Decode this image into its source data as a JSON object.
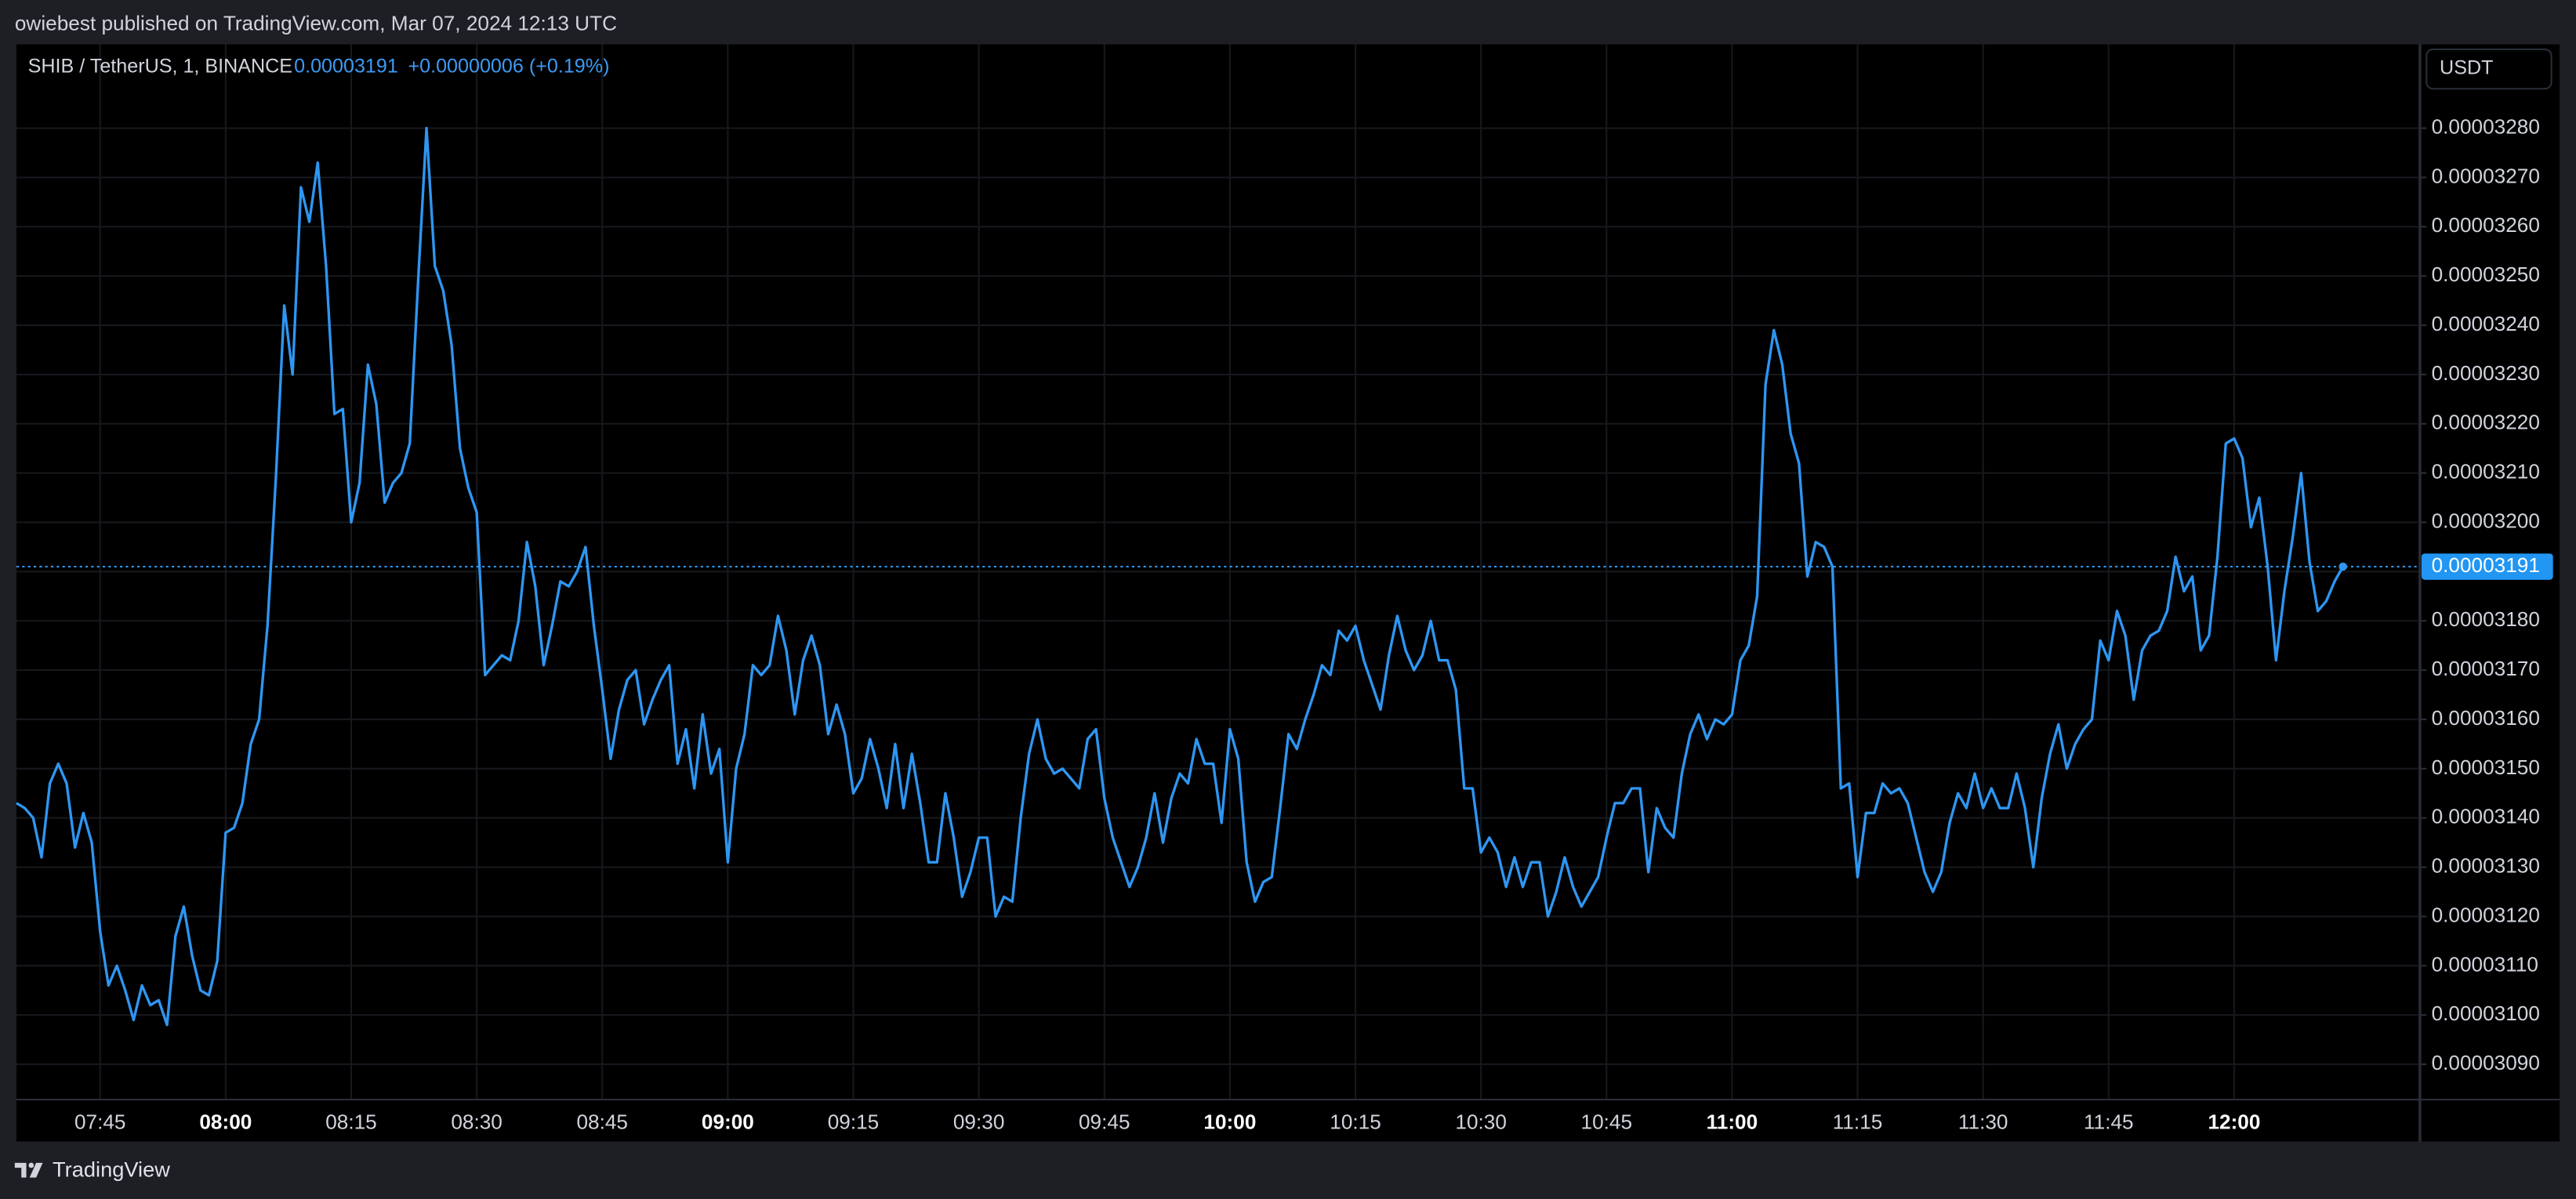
{
  "header": {
    "publisher": "owiebest published on TradingView.com, Mar 07, 2024 12:13 UTC"
  },
  "chart_data": {
    "type": "line",
    "symbol": "SHIB / TetherUS, 1, BINANCE",
    "price": "0.00003191",
    "change": "+0.00000006 (+0.19%)",
    "currency": "USDT",
    "last_price_label": "0.00003191",
    "x": [
      "07:35",
      "07:36",
      "07:37",
      "07:38",
      "07:39",
      "07:40",
      "07:41",
      "07:42",
      "07:43",
      "07:44",
      "07:45",
      "07:46",
      "07:47",
      "07:48",
      "07:49",
      "07:50",
      "07:51",
      "07:52",
      "07:53",
      "07:54",
      "07:55",
      "07:56",
      "07:57",
      "07:58",
      "07:59",
      "08:00",
      "08:01",
      "08:02",
      "08:03",
      "08:04",
      "08:05",
      "08:06",
      "08:07",
      "08:08",
      "08:09",
      "08:10",
      "08:11",
      "08:12",
      "08:13",
      "08:14",
      "08:15",
      "08:16",
      "08:17",
      "08:18",
      "08:19",
      "08:20",
      "08:21",
      "08:22",
      "08:23",
      "08:24",
      "08:25",
      "08:26",
      "08:27",
      "08:28",
      "08:29",
      "08:30",
      "08:31",
      "08:32",
      "08:33",
      "08:34",
      "08:35",
      "08:36",
      "08:37",
      "08:38",
      "08:39",
      "08:40",
      "08:41",
      "08:42",
      "08:43",
      "08:44",
      "08:45",
      "08:46",
      "08:47",
      "08:48",
      "08:49",
      "08:50",
      "08:51",
      "08:52",
      "08:53",
      "08:54",
      "08:55",
      "08:56",
      "08:57",
      "08:58",
      "08:59",
      "09:00",
      "09:01",
      "09:02",
      "09:03",
      "09:04",
      "09:05",
      "09:06",
      "09:07",
      "09:08",
      "09:09",
      "09:10",
      "09:11",
      "09:12",
      "09:13",
      "09:14",
      "09:15",
      "09:16",
      "09:17",
      "09:18",
      "09:19",
      "09:20",
      "09:21",
      "09:22",
      "09:23",
      "09:24",
      "09:25",
      "09:26",
      "09:27",
      "09:28",
      "09:29",
      "09:30",
      "09:31",
      "09:32",
      "09:33",
      "09:34",
      "09:35",
      "09:36",
      "09:37",
      "09:38",
      "09:39",
      "09:40",
      "09:41",
      "09:42",
      "09:43",
      "09:44",
      "09:45",
      "09:46",
      "09:47",
      "09:48",
      "09:49",
      "09:50",
      "09:51",
      "09:52",
      "09:53",
      "09:54",
      "09:55",
      "09:56",
      "09:57",
      "09:58",
      "09:59",
      "10:00",
      "10:01",
      "10:02",
      "10:03",
      "10:04",
      "10:05",
      "10:06",
      "10:07",
      "10:08",
      "10:09",
      "10:10",
      "10:11",
      "10:12",
      "10:13",
      "10:14",
      "10:15",
      "10:16",
      "10:17",
      "10:18",
      "10:19",
      "10:20",
      "10:21",
      "10:22",
      "10:23",
      "10:24",
      "10:25",
      "10:26",
      "10:27",
      "10:28",
      "10:29",
      "10:30",
      "10:31",
      "10:32",
      "10:33",
      "10:34",
      "10:35",
      "10:36",
      "10:37",
      "10:38",
      "10:39",
      "10:40",
      "10:41",
      "10:42",
      "10:43",
      "10:44",
      "10:45",
      "10:46",
      "10:47",
      "10:48",
      "10:49",
      "10:50",
      "10:51",
      "10:52",
      "10:53",
      "10:54",
      "10:55",
      "10:56",
      "10:57",
      "10:58",
      "10:59",
      "11:00",
      "11:01",
      "11:02",
      "11:03",
      "11:04",
      "11:05",
      "11:06",
      "11:07",
      "11:08",
      "11:09",
      "11:10",
      "11:11",
      "11:12",
      "11:13",
      "11:14",
      "11:15",
      "11:16",
      "11:17",
      "11:18",
      "11:19",
      "11:20",
      "11:21",
      "11:22",
      "11:23",
      "11:24",
      "11:25",
      "11:26",
      "11:27",
      "11:28",
      "11:29",
      "11:30",
      "11:31",
      "11:32",
      "11:33",
      "11:34",
      "11:35",
      "11:36",
      "11:37",
      "11:38",
      "11:39",
      "11:40",
      "11:41",
      "11:42",
      "11:43",
      "11:44",
      "11:45",
      "11:46",
      "11:47",
      "11:48",
      "11:49",
      "11:50",
      "11:51",
      "11:52",
      "11:53",
      "11:54",
      "11:55",
      "11:56",
      "11:57",
      "11:58",
      "11:59",
      "12:00",
      "12:01",
      "12:02",
      "12:03",
      "12:04",
      "12:05",
      "12:06",
      "12:07",
      "12:08",
      "12:09",
      "12:10",
      "12:11",
      "12:12",
      "12:13"
    ],
    "series": [
      {
        "color": "#2e96f2",
        "values": [
          3.143e-05,
          3.142e-05,
          3.14e-05,
          3.132e-05,
          3.147e-05,
          3.151e-05,
          3.147e-05,
          3.134e-05,
          3.141e-05,
          3.135e-05,
          3.117e-05,
          3.106e-05,
          3.11e-05,
          3.105e-05,
          3.099e-05,
          3.106e-05,
          3.102e-05,
          3.103e-05,
          3.098e-05,
          3.116e-05,
          3.122e-05,
          3.112e-05,
          3.105e-05,
          3.104e-05,
          3.111e-05,
          3.137e-05,
          3.138e-05,
          3.143e-05,
          3.155e-05,
          3.16e-05,
          3.179e-05,
          3.209e-05,
          3.244e-05,
          3.23e-05,
          3.268e-05,
          3.261e-05,
          3.273e-05,
          3.252e-05,
          3.222e-05,
          3.223e-05,
          3.2e-05,
          3.208e-05,
          3.232e-05,
          3.224e-05,
          3.204e-05,
          3.208e-05,
          3.21e-05,
          3.216e-05,
          3.249e-05,
          3.28e-05,
          3.252e-05,
          3.247e-05,
          3.236e-05,
          3.215e-05,
          3.207e-05,
          3.202e-05,
          3.169e-05,
          3.171e-05,
          3.173e-05,
          3.172e-05,
          3.18e-05,
          3.196e-05,
          3.187e-05,
          3.171e-05,
          3.179e-05,
          3.188e-05,
          3.187e-05,
          3.19e-05,
          3.195e-05,
          3.179e-05,
          3.166e-05,
          3.152e-05,
          3.162e-05,
          3.168e-05,
          3.17e-05,
          3.159e-05,
          3.164e-05,
          3.168e-05,
          3.171e-05,
          3.151e-05,
          3.158e-05,
          3.146e-05,
          3.161e-05,
          3.149e-05,
          3.154e-05,
          3.131e-05,
          3.15e-05,
          3.157e-05,
          3.171e-05,
          3.169e-05,
          3.171e-05,
          3.181e-05,
          3.174e-05,
          3.161e-05,
          3.172e-05,
          3.177e-05,
          3.171e-05,
          3.157e-05,
          3.163e-05,
          3.157e-05,
          3.145e-05,
          3.148e-05,
          3.156e-05,
          3.15e-05,
          3.142e-05,
          3.155e-05,
          3.142e-05,
          3.153e-05,
          3.143e-05,
          3.131e-05,
          3.131e-05,
          3.145e-05,
          3.136e-05,
          3.124e-05,
          3.129e-05,
          3.136e-05,
          3.136e-05,
          3.12e-05,
          3.124e-05,
          3.123e-05,
          3.14e-05,
          3.153e-05,
          3.16e-05,
          3.152e-05,
          3.149e-05,
          3.15e-05,
          3.148e-05,
          3.146e-05,
          3.156e-05,
          3.158e-05,
          3.144e-05,
          3.136e-05,
          3.131e-05,
          3.126e-05,
          3.13e-05,
          3.136e-05,
          3.145e-05,
          3.135e-05,
          3.144e-05,
          3.149e-05,
          3.147e-05,
          3.156e-05,
          3.151e-05,
          3.151e-05,
          3.139e-05,
          3.158e-05,
          3.152e-05,
          3.131e-05,
          3.123e-05,
          3.127e-05,
          3.128e-05,
          3.142e-05,
          3.157e-05,
          3.154e-05,
          3.16e-05,
          3.165e-05,
          3.171e-05,
          3.169e-05,
          3.178e-05,
          3.176e-05,
          3.179e-05,
          3.172e-05,
          3.167e-05,
          3.162e-05,
          3.173e-05,
          3.181e-05,
          3.174e-05,
          3.17e-05,
          3.173e-05,
          3.18e-05,
          3.172e-05,
          3.172e-05,
          3.166e-05,
          3.146e-05,
          3.146e-05,
          3.133e-05,
          3.136e-05,
          3.133e-05,
          3.126e-05,
          3.132e-05,
          3.126e-05,
          3.131e-05,
          3.131e-05,
          3.12e-05,
          3.125e-05,
          3.132e-05,
          3.126e-05,
          3.122e-05,
          3.125e-05,
          3.128e-05,
          3.136e-05,
          3.143e-05,
          3.143e-05,
          3.146e-05,
          3.146e-05,
          3.129e-05,
          3.142e-05,
          3.138e-05,
          3.136e-05,
          3.149e-05,
          3.157e-05,
          3.161e-05,
          3.156e-05,
          3.16e-05,
          3.159e-05,
          3.161e-05,
          3.172e-05,
          3.175e-05,
          3.185e-05,
          3.228e-05,
          3.239e-05,
          3.232e-05,
          3.218e-05,
          3.212e-05,
          3.189e-05,
          3.196e-05,
          3.195e-05,
          3.191e-05,
          3.146e-05,
          3.147e-05,
          3.128e-05,
          3.141e-05,
          3.141e-05,
          3.147e-05,
          3.145e-05,
          3.146e-05,
          3.143e-05,
          3.136e-05,
          3.129e-05,
          3.125e-05,
          3.129e-05,
          3.139e-05,
          3.145e-05,
          3.142e-05,
          3.149e-05,
          3.142e-05,
          3.146e-05,
          3.142e-05,
          3.142e-05,
          3.149e-05,
          3.142e-05,
          3.13e-05,
          3.144e-05,
          3.153e-05,
          3.159e-05,
          3.15e-05,
          3.155e-05,
          3.158e-05,
          3.16e-05,
          3.176e-05,
          3.172e-05,
          3.182e-05,
          3.177e-05,
          3.164e-05,
          3.174e-05,
          3.177e-05,
          3.178e-05,
          3.182e-05,
          3.193e-05,
          3.186e-05,
          3.189e-05,
          3.174e-05,
          3.177e-05,
          3.193e-05,
          3.216e-05,
          3.217e-05,
          3.213e-05,
          3.199e-05,
          3.205e-05,
          3.191e-05,
          3.172e-05,
          3.186e-05,
          3.197e-05,
          3.21e-05,
          3.192e-05,
          3.182e-05,
          3.184e-05,
          3.188e-05,
          3.191e-05
        ]
      }
    ],
    "xlim": [
      "07:35",
      "12:22"
    ],
    "xticks": [
      "07:45",
      "08:00",
      "08:15",
      "08:30",
      "08:45",
      "09:00",
      "09:15",
      "09:30",
      "09:45",
      "10:00",
      "10:15",
      "10:30",
      "10:45",
      "11:00",
      "11:15",
      "11:30",
      "11:45",
      "12:00"
    ],
    "ylim": [
      3.083e-05,
      3.297e-05
    ],
    "yticks": [
      {
        "value": 3.09e-05,
        "label": "0.00003090"
      },
      {
        "value": 3.1e-05,
        "label": "0.00003100"
      },
      {
        "value": 3.11e-05,
        "label": "0.00003110"
      },
      {
        "value": 3.12e-05,
        "label": "0.00003120"
      },
      {
        "value": 3.13e-05,
        "label": "0.00003130"
      },
      {
        "value": 3.14e-05,
        "label": "0.00003140"
      },
      {
        "value": 3.15e-05,
        "label": "0.00003150"
      },
      {
        "value": 3.16e-05,
        "label": "0.00003160"
      },
      {
        "value": 3.17e-05,
        "label": "0.00003170"
      },
      {
        "value": 3.18e-05,
        "label": "0.00003180"
      },
      {
        "value": 3.19e-05,
        "label": "0.00003190"
      },
      {
        "value": 3.2e-05,
        "label": "0.00003200"
      },
      {
        "value": 3.21e-05,
        "label": "0.00003210"
      },
      {
        "value": 3.22e-05,
        "label": "0.00003220"
      },
      {
        "value": 3.23e-05,
        "label": "0.00003230"
      },
      {
        "value": 3.24e-05,
        "label": "0.00003240"
      },
      {
        "value": 3.25e-05,
        "label": "0.00003250"
      },
      {
        "value": 3.26e-05,
        "label": "0.00003260"
      },
      {
        "value": 3.27e-05,
        "label": "0.00003270"
      },
      {
        "value": 3.28e-05,
        "label": "0.00003280"
      }
    ],
    "grid": true
  },
  "footer": {
    "brand": "TradingView"
  }
}
